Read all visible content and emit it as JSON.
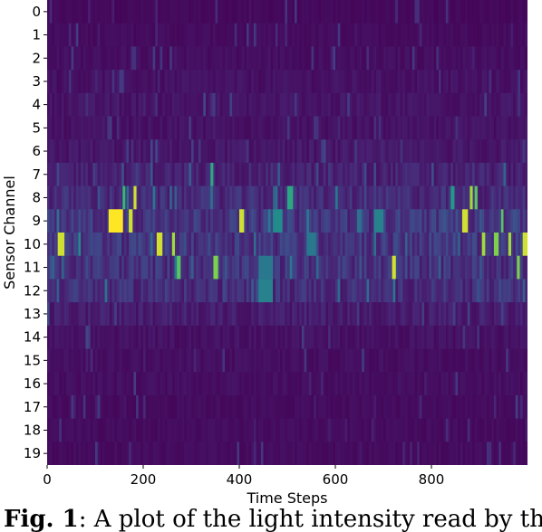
{
  "chart_data": {
    "type": "heatmap",
    "title": "",
    "xlabel": "Time Steps",
    "ylabel": "Sensor Channel",
    "x_ticks": [
      0,
      200,
      400,
      600,
      800
    ],
    "y_ticks": [
      "0",
      "1",
      "2",
      "3",
      "4",
      "5",
      "6",
      "7",
      "8",
      "9",
      "10",
      "11",
      "12",
      "13",
      "14",
      "15",
      "16",
      "17",
      "18",
      "19"
    ],
    "xlim": [
      0,
      1000
    ],
    "colormap": "viridis",
    "value_range": [
      0,
      1
    ],
    "base_levels": [
      0.03,
      0.04,
      0.05,
      0.06,
      0.07,
      0.06,
      0.08,
      0.12,
      0.15,
      0.2,
      0.2,
      0.18,
      0.16,
      0.1,
      0.06,
      0.05,
      0.05,
      0.04,
      0.04,
      0.04
    ],
    "bright_cells": [
      {
        "channel": 9,
        "x": [
          128,
          158
        ],
        "value": 1.0
      },
      {
        "channel": 9,
        "x": [
          170,
          178
        ],
        "value": 0.95
      },
      {
        "channel": 8,
        "x": [
          180,
          186
        ],
        "value": 0.95
      },
      {
        "channel": 8,
        "x": [
          157,
          163
        ],
        "value": 0.75
      },
      {
        "channel": 10,
        "x": [
          22,
          36
        ],
        "value": 0.95
      },
      {
        "channel": 10,
        "x": [
          228,
          240
        ],
        "value": 0.95
      },
      {
        "channel": 10,
        "x": [
          260,
          266
        ],
        "value": 0.9
      },
      {
        "channel": 9,
        "x": [
          400,
          410
        ],
        "value": 0.95
      },
      {
        "channel": 8,
        "x": [
          500,
          512
        ],
        "value": 0.7
      },
      {
        "channel": 9,
        "x": [
          470,
          490
        ],
        "value": 0.6
      },
      {
        "channel": 9,
        "x": [
          680,
          700
        ],
        "value": 0.55
      },
      {
        "channel": 11,
        "x": [
          718,
          726
        ],
        "value": 0.95
      },
      {
        "channel": 9,
        "x": [
          864,
          876
        ],
        "value": 0.95
      },
      {
        "channel": 8,
        "x": [
          880,
          886
        ],
        "value": 0.9
      },
      {
        "channel": 8,
        "x": [
          890,
          896
        ],
        "value": 0.8
      },
      {
        "channel": 10,
        "x": [
          905,
          912
        ],
        "value": 0.9
      },
      {
        "channel": 10,
        "x": [
          930,
          940
        ],
        "value": 0.85
      },
      {
        "channel": 9,
        "x": [
          945,
          950
        ],
        "value": 0.8
      },
      {
        "channel": 10,
        "x": [
          960,
          966
        ],
        "value": 0.9
      },
      {
        "channel": 11,
        "x": [
          978,
          984
        ],
        "value": 0.85
      },
      {
        "channel": 10,
        "x": [
          990,
          1000
        ],
        "value": 0.95
      },
      {
        "channel": 11,
        "x": [
          270,
          278
        ],
        "value": 0.8
      },
      {
        "channel": 11,
        "x": [
          346,
          356
        ],
        "value": 0.85
      },
      {
        "channel": 12,
        "x": [
          440,
          470
        ],
        "value": 0.55
      },
      {
        "channel": 11,
        "x": [
          440,
          470
        ],
        "value": 0.5
      },
      {
        "channel": 10,
        "x": [
          540,
          560
        ],
        "value": 0.5
      },
      {
        "channel": 7,
        "x": [
          340,
          346
        ],
        "value": 0.7
      },
      {
        "channel": 8,
        "x": [
          840,
          848
        ],
        "value": 0.65
      }
    ]
  },
  "caption": {
    "bold": "Fig. 1",
    "text": ": A plot of the light intensity read by the"
  }
}
